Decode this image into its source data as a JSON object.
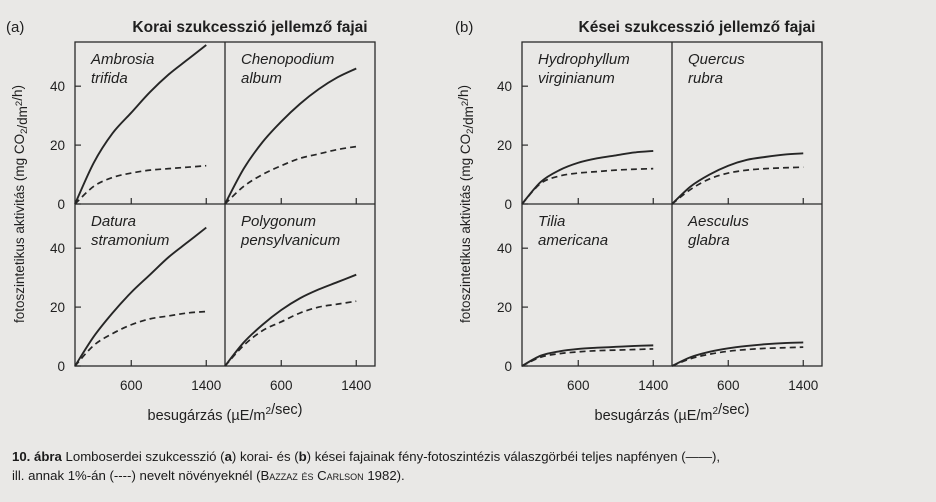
{
  "chart_data": [
    {
      "type": "line",
      "panel_letter": "(a)",
      "title": "Korai szukcesszió jellemző fajai",
      "ylabel": "fotoszintetikus aktivitás (mg CO2/dm2/h)",
      "xlabel": "besugárzás (µE/m2/sec)",
      "xlim": [
        0,
        1600
      ],
      "ylim": [
        0,
        55
      ],
      "x_ticks": [
        600,
        1400
      ],
      "x_tick_labels": [
        "600",
        "1400"
      ],
      "y_ticks": [
        0,
        20,
        40
      ],
      "y_tick_labels": [
        "0",
        "20",
        "40"
      ],
      "subplots": [
        {
          "species": [
            "Ambrosia",
            "trifida"
          ],
          "row": 0,
          "col": 0,
          "series": [
            {
              "style": "solid",
              "x": [
                0,
                200,
                400,
                600,
                800,
                1000,
                1200,
                1400
              ],
              "y": [
                0,
                14,
                24,
                31,
                38,
                44,
                49,
                54
              ]
            },
            {
              "style": "dashed",
              "x": [
                0,
                200,
                400,
                600,
                800,
                1000,
                1200,
                1400
              ],
              "y": [
                0,
                6,
                9,
                10.5,
                11.5,
                12,
                12.5,
                13
              ]
            }
          ]
        },
        {
          "species": [
            "Chenopodium",
            "album"
          ],
          "row": 0,
          "col": 1,
          "series": [
            {
              "style": "solid",
              "x": [
                0,
                200,
                400,
                600,
                800,
                1000,
                1200,
                1400
              ],
              "y": [
                0,
                12,
                21,
                28,
                34,
                39,
                43,
                46
              ]
            },
            {
              "style": "dashed",
              "x": [
                0,
                200,
                400,
                600,
                800,
                1000,
                1200,
                1400
              ],
              "y": [
                0,
                6,
                10,
                13,
                15.5,
                17,
                18.5,
                19.5
              ]
            }
          ]
        },
        {
          "species": [
            "Datura",
            "stramonium"
          ],
          "row": 1,
          "col": 0,
          "series": [
            {
              "style": "solid",
              "x": [
                0,
                200,
                400,
                600,
                800,
                1000,
                1200,
                1400
              ],
              "y": [
                0,
                10,
                18,
                25,
                31,
                37,
                42,
                47
              ]
            },
            {
              "style": "dashed",
              "x": [
                0,
                200,
                400,
                600,
                800,
                1000,
                1200,
                1400
              ],
              "y": [
                0,
                7,
                11,
                14,
                16,
                17,
                18,
                18.5
              ]
            }
          ]
        },
        {
          "species": [
            "Polygonum",
            "pensylvanicum"
          ],
          "row": 1,
          "col": 1,
          "series": [
            {
              "style": "solid",
              "x": [
                0,
                200,
                400,
                600,
                800,
                1000,
                1200,
                1400
              ],
              "y": [
                0,
                8,
                14,
                19,
                23,
                26,
                28.5,
                31
              ]
            },
            {
              "style": "dashed",
              "x": [
                0,
                200,
                400,
                600,
                800,
                1000,
                1200,
                1400
              ],
              "y": [
                0,
                7,
                12,
                15,
                18,
                20,
                21,
                22
              ]
            }
          ]
        }
      ]
    },
    {
      "type": "line",
      "panel_letter": "(b)",
      "title": "Kései szukcesszió jellemző fajai",
      "ylabel": "fotoszintetikus aktivitás (mg CO2/dm2/h)",
      "xlabel": "besugárzás (µE/m2/sec)",
      "xlim": [
        0,
        1600
      ],
      "ylim": [
        0,
        55
      ],
      "x_ticks": [
        600,
        1400
      ],
      "x_tick_labels": [
        "600",
        "1400"
      ],
      "y_ticks": [
        0,
        20,
        40
      ],
      "y_tick_labels": [
        "0",
        "20",
        "40"
      ],
      "subplots": [
        {
          "species": [
            "Hydrophyllum",
            "virginianum"
          ],
          "row": 0,
          "col": 0,
          "series": [
            {
              "style": "solid",
              "x": [
                0,
                200,
                400,
                600,
                800,
                1000,
                1200,
                1400
              ],
              "y": [
                0,
                7.5,
                11.5,
                14,
                15.5,
                16.5,
                17.5,
                18
              ]
            },
            {
              "style": "dashed",
              "x": [
                0,
                200,
                400,
                600,
                800,
                1000,
                1200,
                1400
              ],
              "y": [
                0,
                7,
                9.5,
                10.5,
                11,
                11.5,
                11.8,
                12
              ]
            }
          ]
        },
        {
          "species": [
            "Quercus",
            "rubra"
          ],
          "row": 0,
          "col": 1,
          "series": [
            {
              "style": "solid",
              "x": [
                0,
                200,
                400,
                600,
                800,
                1000,
                1200,
                1400
              ],
              "y": [
                0,
                6,
                10,
                13,
                15,
                16,
                16.8,
                17.2
              ]
            },
            {
              "style": "dashed",
              "x": [
                0,
                200,
                400,
                600,
                800,
                1000,
                1200,
                1400
              ],
              "y": [
                0,
                5,
                8.5,
                10.5,
                11.5,
                12,
                12.3,
                12.5
              ]
            }
          ]
        },
        {
          "species": [
            "Tilia",
            "americana"
          ],
          "row": 1,
          "col": 0,
          "series": [
            {
              "style": "solid",
              "x": [
                0,
                200,
                400,
                600,
                800,
                1000,
                1200,
                1400
              ],
              "y": [
                0,
                3.5,
                5,
                5.8,
                6.2,
                6.5,
                6.8,
                7
              ]
            },
            {
              "style": "dashed",
              "x": [
                0,
                200,
                400,
                600,
                800,
                1000,
                1200,
                1400
              ],
              "y": [
                0,
                3,
                4.2,
                4.8,
                5.2,
                5.4,
                5.6,
                5.8
              ]
            }
          ]
        },
        {
          "species": [
            "Aesculus",
            "glabra"
          ],
          "row": 1,
          "col": 1,
          "series": [
            {
              "style": "solid",
              "x": [
                0,
                200,
                400,
                600,
                800,
                1000,
                1200,
                1400
              ],
              "y": [
                0,
                3,
                4.8,
                6,
                6.8,
                7.4,
                7.8,
                8
              ]
            },
            {
              "style": "dashed",
              "x": [
                0,
                200,
                400,
                600,
                800,
                1000,
                1200,
                1400
              ],
              "y": [
                0,
                2.5,
                4,
                5,
                5.6,
                6,
                6.2,
                6.4
              ]
            }
          ]
        }
      ]
    }
  ],
  "caption": {
    "number": "10. ábra",
    "text_1": " Lomboserdei szukcesszió (",
    "a": "a",
    "text_2": ") korai- és (",
    "b": "b",
    "text_3": ") kései fajainak fény-fotoszintézis válaszgörbéi teljes napfényen (——),",
    "text_4": "ill. annak 1%-án (----) nevelt növényeknél (",
    "authors": "Bazzaz és Carlson",
    "year": " 1982)."
  }
}
